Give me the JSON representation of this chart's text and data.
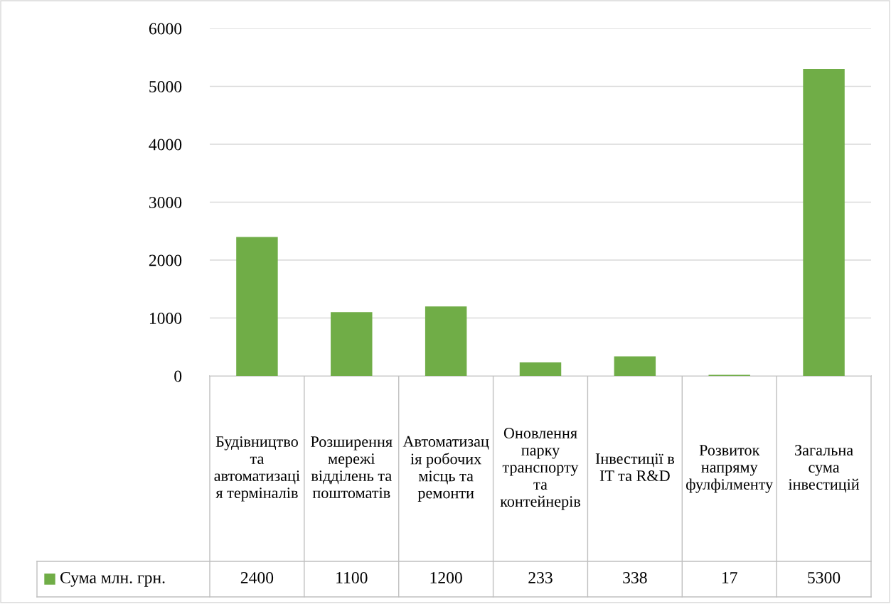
{
  "chart_data": {
    "type": "bar",
    "categories": [
      "Будівництво та автоматизація терміналів",
      "Розширення мережі відділень та поштоматів",
      "Автоматизація робочих місць та ремонти",
      "Оновлення парку транспорту та контейнерів",
      "Інвестиції в IT та R&D",
      "Розвиток напряму фулфілменту",
      "Загальна сума інвестицій"
    ],
    "series": [
      {
        "name": "Сума млн. грн.",
        "color": "#70ad47",
        "values": [
          2400,
          1100,
          1200,
          233,
          338,
          17,
          5300
        ]
      }
    ],
    "ylim": [
      0,
      6000
    ],
    "yticks": [
      0,
      1000,
      2000,
      3000,
      4000,
      5000,
      6000
    ],
    "grid": "y",
    "legend": "bottom",
    "data_labels": true
  }
}
